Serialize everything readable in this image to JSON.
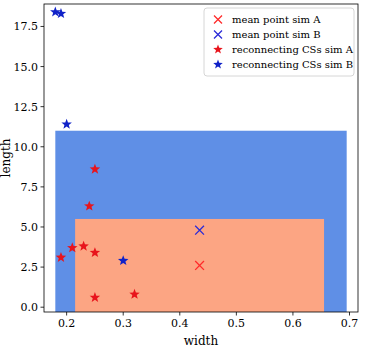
{
  "chart_data": {
    "type": "scatter",
    "x_label": "width",
    "y_label": "length",
    "xlim": [
      0.16,
      0.715
    ],
    "ylim": [
      -0.3,
      18.9
    ],
    "xticks": [
      0.2,
      0.3,
      0.4,
      0.5,
      0.6,
      0.7
    ],
    "yticks": [
      {
        "value": 0,
        "label": "0.0"
      },
      {
        "value": 2.5,
        "label": "2.5"
      },
      {
        "value": 5,
        "label": "5.0"
      },
      {
        "value": 7.5,
        "label": "7.5"
      },
      {
        "value": 10,
        "label": "10.0"
      },
      {
        "value": 12.5,
        "label": "12.5"
      },
      {
        "value": 15,
        "label": "15.0"
      },
      {
        "value": 17.5,
        "label": "17.5"
      }
    ],
    "grid": false,
    "legend": "upper-right",
    "regions": [
      {
        "color": "#5f8fe6",
        "x": [
          0.18,
          0.695
        ],
        "y": [
          -0.3,
          11.0
        ]
      },
      {
        "color": "#fca583",
        "x": [
          0.215,
          0.655
        ],
        "y": [
          -0.3,
          5.5
        ]
      }
    ],
    "series": [
      {
        "name": "mean point sim A",
        "color": "#ff2a2a",
        "marker": "x",
        "x": [
          0.435
        ],
        "values": [
          2.6
        ]
      },
      {
        "name": "mean point sim B",
        "color": "#2a2ad8",
        "marker": "x",
        "x": [
          0.435
        ],
        "values": [
          4.8
        ]
      },
      {
        "name": "reconnecting CSs sim A",
        "color": "#e8141c",
        "marker": "star",
        "x": [
          0.19,
          0.21,
          0.23,
          0.25,
          0.25,
          0.32,
          0.24,
          0.25
        ],
        "values": [
          3.1,
          3.7,
          3.8,
          3.4,
          0.6,
          0.8,
          6.3,
          8.6
        ]
      },
      {
        "name": "reconnecting CSs sim B",
        "color": "#1022c8",
        "marker": "star",
        "x": [
          0.18,
          0.19,
          0.2,
          0.3
        ],
        "values": [
          18.4,
          18.3,
          11.4,
          2.9
        ]
      }
    ]
  }
}
